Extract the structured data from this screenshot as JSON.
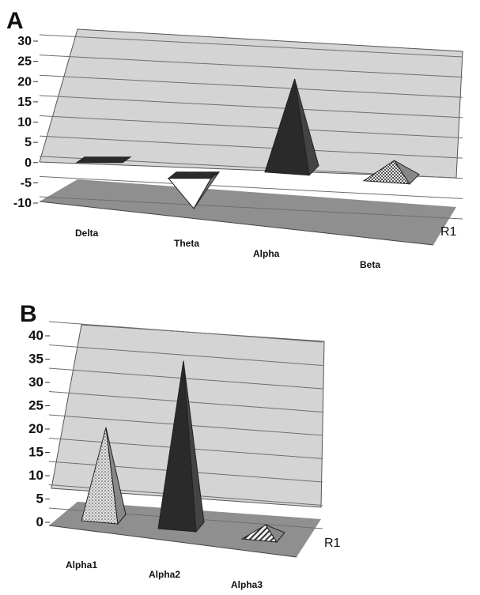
{
  "chart_data": [
    {
      "panel_label": "A",
      "type": "bar",
      "style": "3d-pyramid",
      "categories": [
        "Delta",
        "Theta",
        "Alpha",
        "Beta"
      ],
      "values": [
        0.5,
        -9,
        23,
        5
      ],
      "fills": [
        "dark",
        "white",
        "dark",
        "checker"
      ],
      "y_ticks": [
        "30",
        "25",
        "20",
        "15",
        "10",
        "5",
        "0",
        "-5",
        "-10"
      ],
      "ylim": [
        -10,
        30
      ],
      "series_label": "R1",
      "grid": true
    },
    {
      "panel_label": "B",
      "type": "bar",
      "style": "3d-pyramid",
      "categories": [
        "Alpha1",
        "Alpha2",
        "Alpha3"
      ],
      "values": [
        20,
        36,
        3
      ],
      "fills": [
        "dots",
        "dark",
        "stripes"
      ],
      "y_ticks": [
        "40",
        "35",
        "30",
        "25",
        "20",
        "15",
        "10",
        "5",
        "0"
      ],
      "ylim": [
        0,
        40
      ],
      "series_label": "R1",
      "grid": true
    }
  ],
  "colors": {
    "wall": "#d4d4d4",
    "floor": "#8f8f8f",
    "grid": "#6e6e6e",
    "dark_bar": "#2a2a2a",
    "dark_bar_side": "#444444"
  }
}
